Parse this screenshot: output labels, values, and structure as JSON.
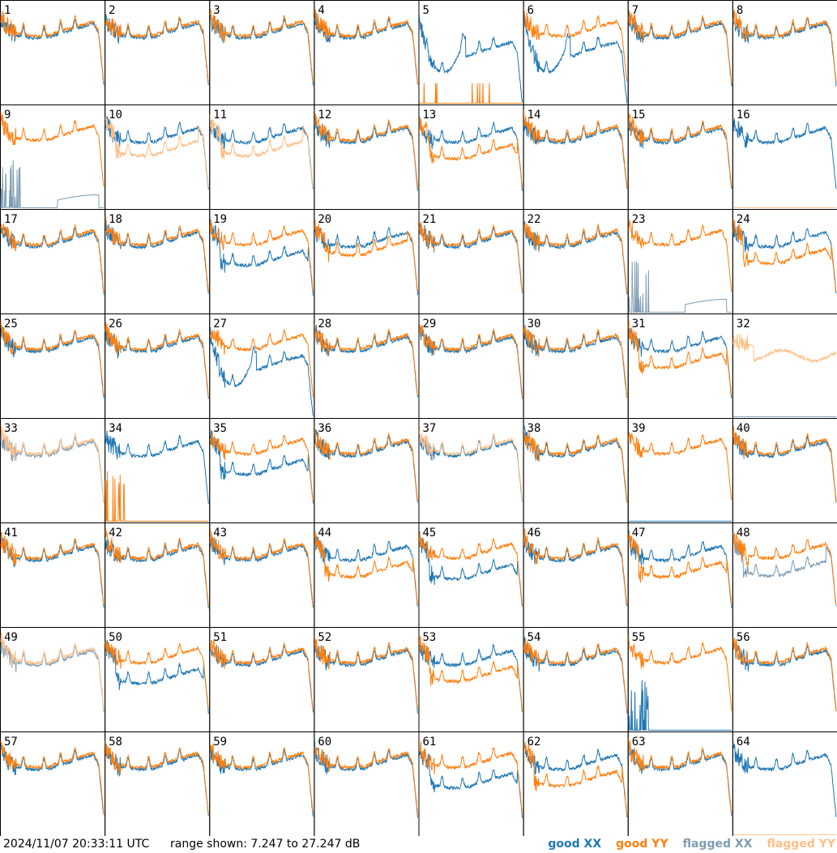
{
  "chart_data": {
    "type": "line",
    "layout": "8x8 small multiples",
    "footer": {
      "timestamp": "2024/11/07 20:33:11 UTC",
      "range_text": "range shown: 7.247 to 27.247 dB"
    },
    "ylim": [
      7.247,
      27.247
    ],
    "legend": [
      {
        "name": "good XX",
        "color": "#1f77b4"
      },
      {
        "name": "good YY",
        "color": "#ff7f0e"
      },
      {
        "name": "flagged XX",
        "color": "#7f9db4"
      },
      {
        "name": "flagged YY",
        "color": "#ffbf87"
      }
    ],
    "panels": [
      {
        "label": "1",
        "xx": "n",
        "yy": "n",
        "xxs": [
          [
            0.05,
            0.25
          ]
        ]
      },
      {
        "label": "2",
        "xx": "n",
        "yy": "n"
      },
      {
        "label": "3",
        "xx": "n",
        "yy": "n"
      },
      {
        "label": "4",
        "xx": "n",
        "yy": "n"
      },
      {
        "label": "5",
        "xx": "dip",
        "yy": "flat0",
        "xxs": [
          [
            0.05,
            0.25
          ]
        ]
      },
      {
        "label": "6",
        "xx": "dip",
        "yy": "n",
        "xxs": [
          [
            0.0,
            0.4
          ]
        ]
      },
      {
        "label": "7",
        "xx": "n",
        "yy": "n"
      },
      {
        "label": "8",
        "xx": "n",
        "yy": "n",
        "yys": [
          [
            0.1,
            0.2
          ]
        ]
      },
      {
        "label": "9",
        "xx": "flag_spikes",
        "yy": "n"
      },
      {
        "label": "10",
        "xx": "n",
        "yy": "flag_low"
      },
      {
        "label": "11",
        "xx": "n",
        "yy": "flag_low"
      },
      {
        "label": "12",
        "xx": "n",
        "yy": "n"
      },
      {
        "label": "13",
        "xx": "n",
        "yy": "low",
        "yys": [
          [
            0.0,
            0.25
          ]
        ]
      },
      {
        "label": "14",
        "xx": "n",
        "yy": "n"
      },
      {
        "label": "15",
        "xx": "n",
        "yy": "n"
      },
      {
        "label": "16",
        "xx": "n",
        "yy": "flag_spike0"
      },
      {
        "label": "17",
        "xx": "n",
        "yy": "n"
      },
      {
        "label": "18",
        "xx": "n",
        "yy": "n"
      },
      {
        "label": "19",
        "xx": "low",
        "yy": "n"
      },
      {
        "label": "20",
        "xx": "n",
        "yy": "lowish"
      },
      {
        "label": "21",
        "xx": "n",
        "yy": "n"
      },
      {
        "label": "22",
        "xx": "n",
        "yy": "n"
      },
      {
        "label": "23",
        "xx": "flag_spikes",
        "yy": "n"
      },
      {
        "label": "24",
        "xx": "n",
        "yy": "low"
      },
      {
        "label": "25",
        "xx": "n",
        "yy": "n"
      },
      {
        "label": "26",
        "xx": "n",
        "yy": "n"
      },
      {
        "label": "27",
        "xx": "dip",
        "yy": "n",
        "xxs": [
          [
            0.0,
            0.4
          ]
        ]
      },
      {
        "label": "28",
        "xx": "n",
        "yy": "n"
      },
      {
        "label": "29",
        "xx": "n",
        "yy": "n"
      },
      {
        "label": "30",
        "xx": "n",
        "yy": "n"
      },
      {
        "label": "31",
        "xx": "n",
        "yy": "low"
      },
      {
        "label": "32",
        "xx": "flag_spike0",
        "yy": "flag_hi"
      },
      {
        "label": "33",
        "xx": "flag",
        "yy": "flag"
      },
      {
        "label": "34",
        "xx": "n",
        "yy": "spikes0"
      },
      {
        "label": "35",
        "xx": "low",
        "yy": "n"
      },
      {
        "label": "36",
        "xx": "n",
        "yy": "n"
      },
      {
        "label": "37",
        "xx": "n",
        "yy": "flag"
      },
      {
        "label": "38",
        "xx": "n",
        "yy": "n"
      },
      {
        "label": "39",
        "xx": "spike0",
        "yy": "n"
      },
      {
        "label": "40",
        "xx": "n",
        "yy": "n"
      },
      {
        "label": "41",
        "xx": "n",
        "yy": "n"
      },
      {
        "label": "42",
        "xx": "n",
        "yy": "n"
      },
      {
        "label": "43",
        "xx": "n",
        "yy": "n"
      },
      {
        "label": "44",
        "xx": "n",
        "yy": "low"
      },
      {
        "label": "45",
        "xx": "low",
        "yy": "n"
      },
      {
        "label": "46",
        "xx": "n",
        "yy": "n"
      },
      {
        "label": "47",
        "xx": "n",
        "yy": "low"
      },
      {
        "label": "48",
        "xx": "flag_low",
        "yy": "n"
      },
      {
        "label": "49",
        "xx": "flag",
        "yy": "flag"
      },
      {
        "label": "50",
        "xx": "low",
        "yy": "n"
      },
      {
        "label": "51",
        "xx": "n",
        "yy": "n"
      },
      {
        "label": "52",
        "xx": "n",
        "yy": "n"
      },
      {
        "label": "53",
        "xx": "n",
        "yy": "low"
      },
      {
        "label": "54",
        "xx": "n",
        "yy": "n"
      },
      {
        "label": "55",
        "xx": "spikes0",
        "yy": "n"
      },
      {
        "label": "56",
        "xx": "n",
        "yy": "n"
      },
      {
        "label": "57",
        "xx": "n",
        "yy": "n"
      },
      {
        "label": "58",
        "xx": "n",
        "yy": "n"
      },
      {
        "label": "59",
        "xx": "n",
        "yy": "n"
      },
      {
        "label": "60",
        "xx": "n",
        "yy": "n"
      },
      {
        "label": "61",
        "xx": "low",
        "yy": "n"
      },
      {
        "label": "62",
        "xx": "n",
        "yy": "low"
      },
      {
        "label": "63",
        "xx": "n",
        "yy": "n"
      },
      {
        "label": "64",
        "xx": "n",
        "yy": "flag_spike0"
      }
    ]
  }
}
